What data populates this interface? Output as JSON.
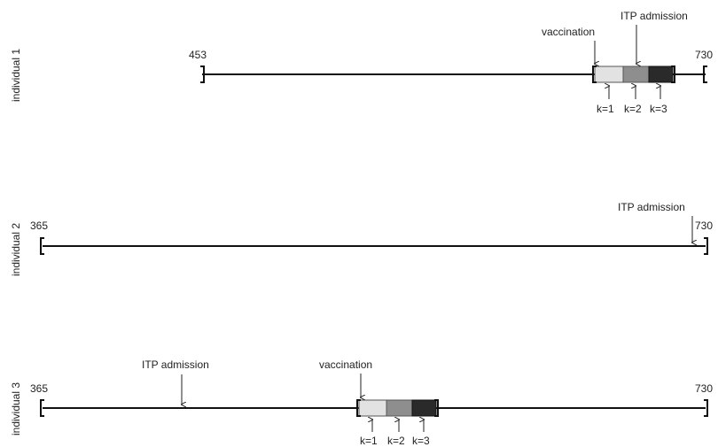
{
  "rows": [
    {
      "label": "individual 1",
      "start": "453",
      "end": "730",
      "annotations": [
        "vaccination",
        "ITP admission"
      ],
      "segments": [
        "k=1",
        "k=2",
        "k=3"
      ],
      "segment_colors": [
        "#e2e2e2",
        "#8e8e8e",
        "#2a2a2a"
      ]
    },
    {
      "label": "individual 2",
      "start": "365",
      "end": "730",
      "annotations": [
        "ITP admission"
      ]
    },
    {
      "label": "individual 3",
      "start": "365",
      "end": "730",
      "annotations": [
        "ITP admission",
        "vaccination"
      ],
      "segments": [
        "k=1",
        "k=2",
        "k=3"
      ],
      "segment_colors": [
        "#e2e2e2",
        "#8e8e8e",
        "#2a2a2a"
      ]
    }
  ]
}
